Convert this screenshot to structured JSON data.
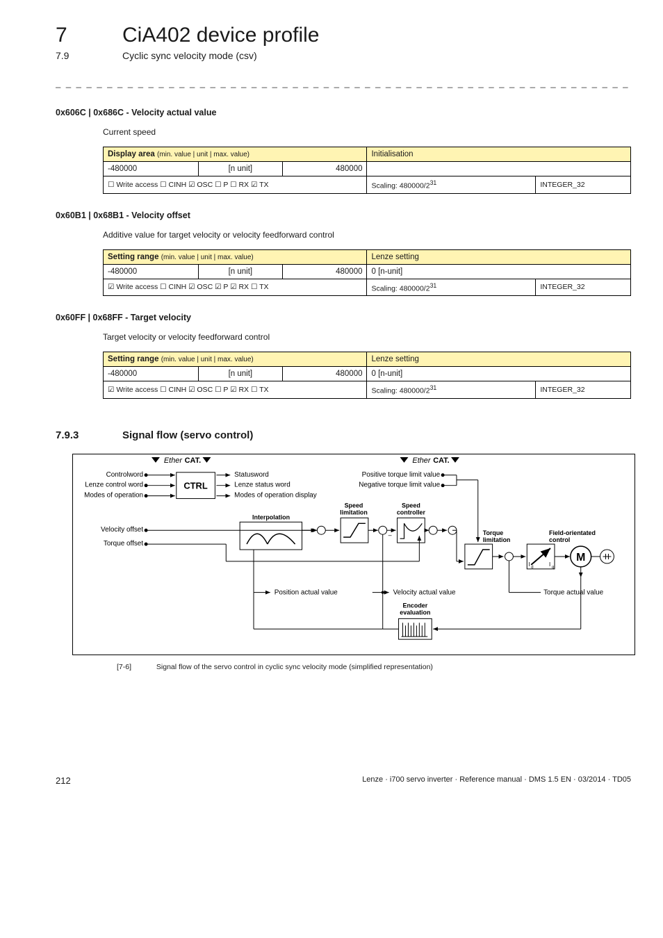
{
  "header": {
    "chapter_num": "7",
    "chapter_title": "CiA402 device profile",
    "section_num": "7.9",
    "section_title": "Cyclic sync velocity mode (csv)"
  },
  "separator": "_ _ _ _ _ _ _ _ _ _ _ _ _ _ _ _ _ _ _ _ _ _ _ _ _ _ _ _ _ _ _ _ _ _ _ _ _ _ _ _ _ _ _ _ _ _ _ _ _ _ _ _ _ _ _ _ _ _ _ _ _ _ _ _",
  "params": [
    {
      "title": "0x606C | 0x686C - Velocity actual value",
      "desc": "Current speed",
      "header1": "Display area (min. value | unit | max. value)",
      "header2": "Initialisation",
      "min": "-480000",
      "unit": "[n unit]",
      "max": "480000",
      "setting": "",
      "access": "☐ Write access   ☐ CINH   ☑ OSC   ☐ P   ☐ RX   ☑ TX",
      "scaling": "Scaling: 480000/2",
      "exp": "31",
      "type": "INTEGER_32"
    },
    {
      "title": "0x60B1 | 0x68B1 - Velocity offset",
      "desc": "Additive value for target velocity or velocity feedforward control",
      "header1": "Setting range (min. value | unit | max. value)",
      "header2": "Lenze setting",
      "min": "-480000",
      "unit": "[n unit]",
      "max": "480000",
      "setting": "0 [n-unit]",
      "access": "☑ Write access   ☐ CINH   ☑ OSC   ☑ P   ☑ RX   ☐ TX",
      "scaling": "Scaling: 480000/2",
      "exp": "31",
      "type": "INTEGER_32"
    },
    {
      "title": "0x60FF | 0x68FF - Target velocity",
      "desc": "Target velocity or velocity feedforward control",
      "header1": "Setting range (min. value | unit | max. value)",
      "header2": "Lenze setting",
      "min": "-480000",
      "unit": "[n unit]",
      "max": "480000",
      "setting": "0 [n-unit]",
      "access": "☑ Write access   ☐ CINH   ☑ OSC   ☐ P   ☑ RX   ☐ TX",
      "scaling": "Scaling: 480000/2",
      "exp": "31",
      "type": "INTEGER_32"
    }
  ],
  "signal_section": {
    "num": "7.9.3",
    "title": "Signal flow (servo control)"
  },
  "diagram": {
    "ethercat1": "EtherCAT.",
    "ethercat2": "EtherCAT.",
    "controlword": "Controlword",
    "lenze_ctrl": "Lenze control word",
    "modes_op": "Modes of operation",
    "ctrl": "CTRL",
    "statusword": "Statusword",
    "lenze_status": "Lenze status word",
    "modes_disp": "Modes of operation display",
    "pos_torque": "Positive torque limit value",
    "neg_torque": "Negative torque limit value",
    "vel_offset": "Velocity offset",
    "torque_offset": "Torque offset",
    "interp": "Interpolation",
    "speed_lim": "Speed\nlimitation",
    "speed_ctrl": "Speed\ncontroller",
    "torque_lim": "Torque\nlimitation",
    "field_ctrl": "Field-orientated\ncontrol",
    "pos_actual": "Position actual value",
    "vel_actual": "Velocity actual value",
    "torque_actual": "Torque actual value",
    "enc_eval": "Encoder\nevaluation",
    "motor": "M"
  },
  "caption": {
    "tag": "[7-6]",
    "text": "Signal flow of the servo control in cyclic sync velocity mode (simplified representation)"
  },
  "footer": {
    "page": "212",
    "pub": "Lenze · i700 servo inverter · Reference manual · DMS 1.5 EN · 03/2014 · TD05"
  }
}
